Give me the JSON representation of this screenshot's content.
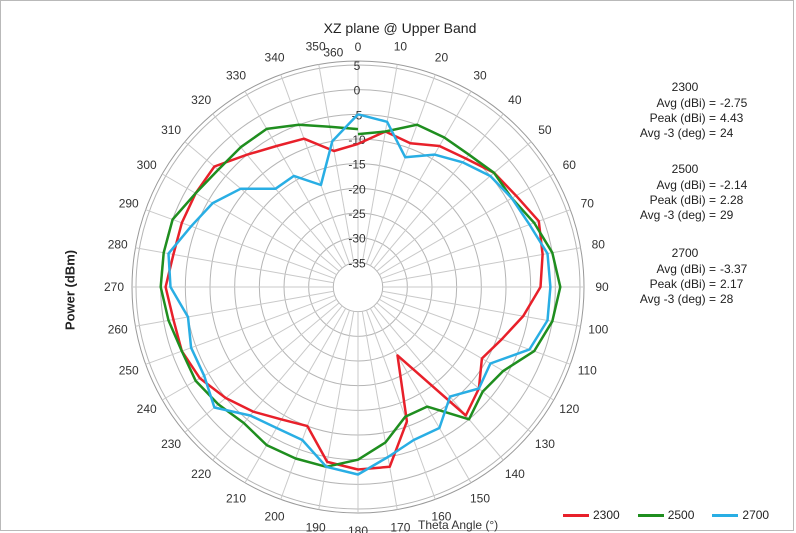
{
  "chart_data": {
    "type": "polar-line",
    "title": "XZ plane @ Upper Band",
    "ylabel": "Power (dBm)",
    "xlabel": "Theta  Angle (°)",
    "radial_ticks": [
      5,
      0,
      -5,
      -10,
      -15,
      -20,
      -25,
      -30,
      -35
    ],
    "radial_range": [
      -40,
      5
    ],
    "angle_ticks": [
      0,
      10,
      20,
      30,
      40,
      50,
      60,
      70,
      80,
      90,
      100,
      110,
      120,
      130,
      140,
      150,
      160,
      170,
      180,
      190,
      200,
      210,
      220,
      230,
      240,
      250,
      260,
      270,
      280,
      290,
      300,
      310,
      320,
      330,
      340,
      350,
      360
    ],
    "grid": true,
    "legend_position": "bottom-right",
    "angles": [
      0,
      10,
      20,
      30,
      40,
      50,
      60,
      70,
      80,
      90,
      100,
      110,
      120,
      130,
      140,
      150,
      160,
      170,
      180,
      190,
      200,
      210,
      220,
      230,
      240,
      250,
      260,
      270,
      280,
      290,
      300,
      310,
      320,
      330,
      340,
      350,
      360
    ],
    "series": [
      {
        "name": "2300",
        "color": "#e8202a",
        "values": [
          -11,
          -8,
          -9,
          -7,
          -6,
          -4,
          -3,
          -1,
          -2,
          -3,
          -6,
          -9,
          -11,
          -8,
          -6,
          -24,
          -11,
          -3,
          -3,
          -4,
          -10,
          -9,
          -7,
          -5,
          -3,
          -2,
          -2,
          -1,
          -2,
          -2,
          -2,
          -2,
          -5,
          -7,
          -8,
          -12,
          -11
        ]
      },
      {
        "name": "2500",
        "color": "#1f8e1f",
        "values": [
          -9,
          -8,
          -5,
          -5,
          -5,
          -4,
          -4,
          -2,
          0,
          1,
          0,
          -2,
          -6,
          -7,
          -5,
          -12,
          -12,
          -8,
          -5,
          -3,
          -3,
          -3,
          -4,
          -3,
          -2,
          -2,
          -1,
          0,
          0,
          0,
          -2,
          -3,
          -3,
          -3,
          -5,
          -7,
          -8
        ]
      },
      {
        "name": "2700",
        "color": "#29aee4",
        "values": [
          -5,
          -6,
          -12,
          -9,
          -7,
          -5,
          -4,
          -3,
          -1,
          -1,
          -1,
          -3,
          -9,
          -8,
          -11,
          -7,
          -7,
          -5,
          -2,
          -3,
          -7,
          -7,
          -6,
          -2,
          -4,
          -4,
          -5,
          -2,
          -1,
          -4,
          -6,
          -9,
          -14,
          -14,
          -18,
          -10,
          -5
        ]
      }
    ]
  },
  "stats": [
    {
      "name": "2300",
      "avg_label": "Avg (dBi) =",
      "avg": "-2.75",
      "peak_label": "Peak (dBi) =",
      "peak": "4.43",
      "avg3_label": "Avg -3 (deg) =",
      "avg3": "24"
    },
    {
      "name": "2500",
      "avg_label": "Avg (dBi) =",
      "avg": "-2.14",
      "peak_label": "Peak (dBi) =",
      "peak": "2.28",
      "avg3_label": "Avg -3 (deg) =",
      "avg3": "29"
    },
    {
      "name": "2700",
      "avg_label": "Avg (dBi) =",
      "avg": "-3.37",
      "peak_label": "Peak (dBi) =",
      "peak": "2.17",
      "avg3_label": "Avg -3 (deg) =",
      "avg3": "28"
    }
  ]
}
